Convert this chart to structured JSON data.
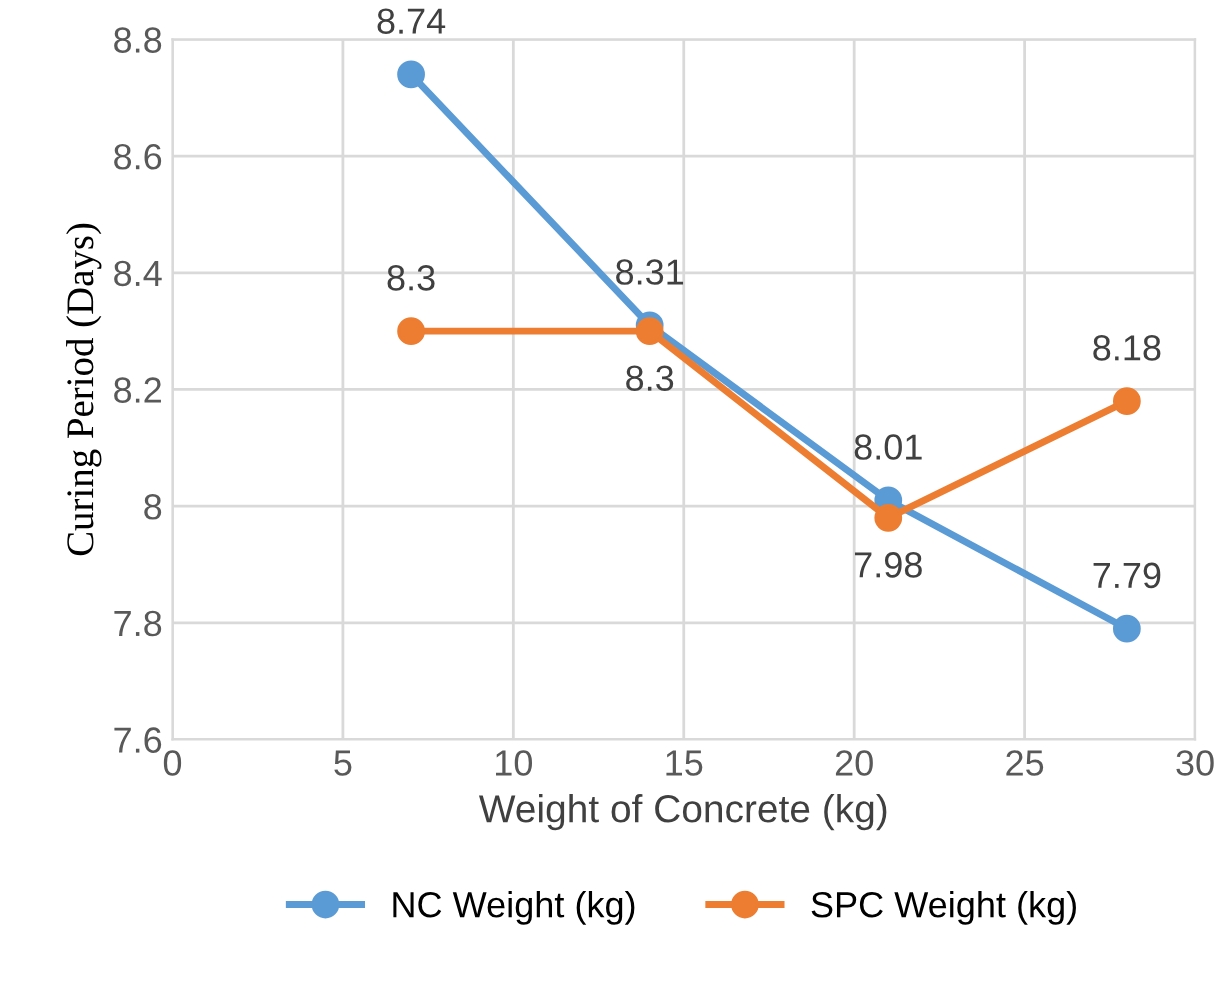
{
  "chart_data": {
    "type": "line",
    "xlabel": "Weight of Concrete (kg)",
    "ylabel": "Curing Period (Days)",
    "x": [
      7,
      14,
      21,
      28
    ],
    "series": [
      {
        "name": "NC Weight (kg)",
        "color": "#5b9bd5",
        "values": [
          8.74,
          8.31,
          8.01,
          7.79
        ]
      },
      {
        "name": "SPC Weight (kg)",
        "color": "#ed7d31",
        "values": [
          8.3,
          8.3,
          7.98,
          8.18
        ]
      }
    ],
    "xlim": [
      0,
      30
    ],
    "xticks": [
      0,
      5,
      10,
      15,
      20,
      25,
      30
    ],
    "ylim": [
      7.6,
      8.8
    ],
    "yticks": [
      7.6,
      7.8,
      8,
      8.2,
      8.4,
      8.6,
      8.8
    ],
    "grid": true,
    "legend": "bottom",
    "marker": "circle",
    "line_style": "solid",
    "data_labels": true
  }
}
